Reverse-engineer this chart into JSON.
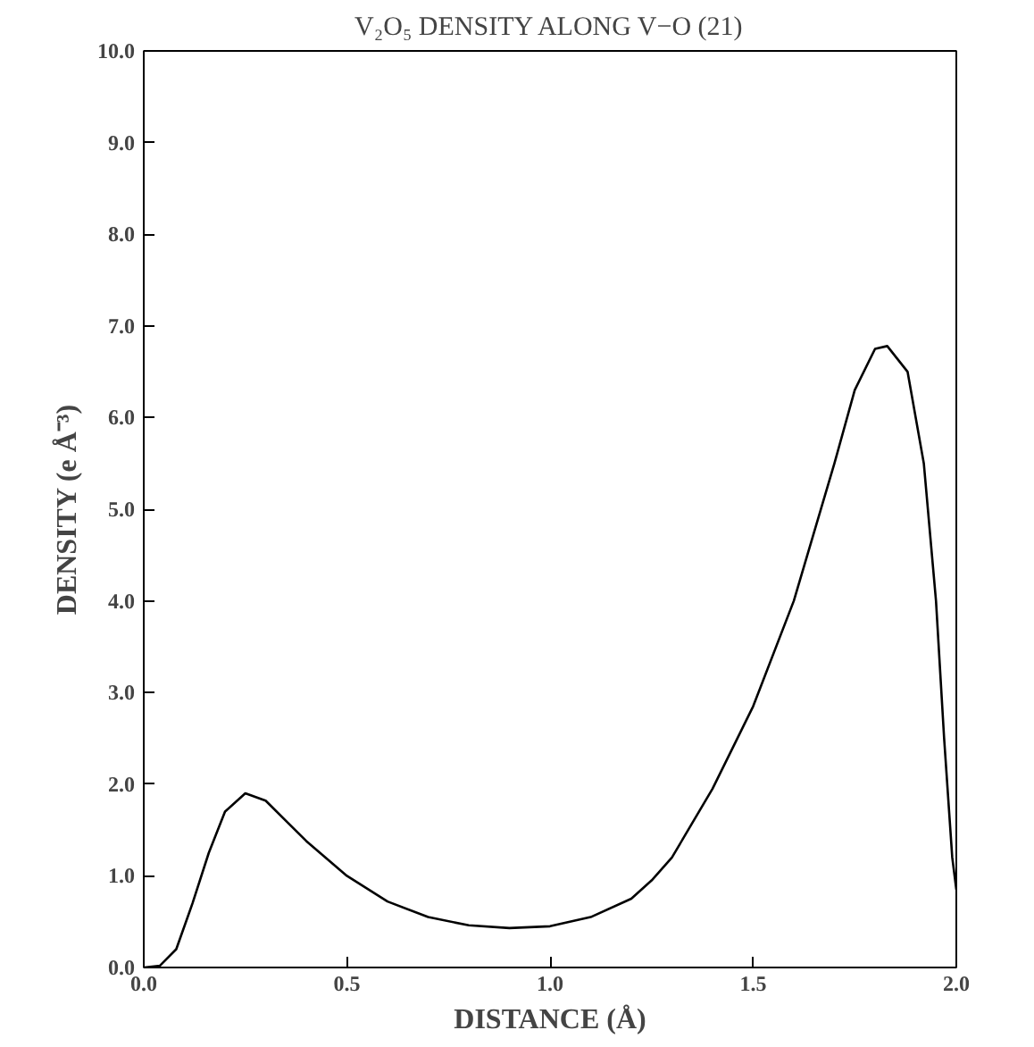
{
  "chart_data": {
    "type": "line",
    "title": "V₂O₅ DENSITY ALONG V−O (21)",
    "xlabel": "DISTANCE (Å)",
    "ylabel": "DENSITY (e Å⁻³)",
    "x": [
      0,
      0.04,
      0.08,
      0.12,
      0.16,
      0.2,
      0.25,
      0.3,
      0.35,
      0.4,
      0.5,
      0.6,
      0.7,
      0.8,
      0.9,
      1.0,
      1.1,
      1.2,
      1.25,
      1.3,
      1.4,
      1.5,
      1.6,
      1.7,
      1.75,
      1.8,
      1.83,
      1.88,
      1.92,
      1.95,
      1.97,
      1.99,
      2.0
    ],
    "series": [
      {
        "color": "#000000",
        "values": [
          0,
          0.02,
          0.2,
          0.7,
          1.25,
          1.7,
          1.9,
          1.82,
          1.6,
          1.38,
          1.0,
          0.72,
          0.55,
          0.46,
          0.43,
          0.45,
          0.55,
          0.75,
          0.95,
          1.2,
          1.95,
          2.85,
          4.0,
          5.5,
          6.3,
          6.75,
          6.78,
          6.5,
          5.5,
          4.0,
          2.5,
          1.2,
          0.85
        ]
      }
    ],
    "xlim": [
      0,
      2
    ],
    "ylim": [
      0,
      10
    ],
    "xticks": [
      {
        "value": 0,
        "label": "0.0"
      },
      {
        "value": 0.5,
        "label": "0.5"
      },
      {
        "value": 1,
        "label": "1.0"
      },
      {
        "value": 1.5,
        "label": "1.5"
      },
      {
        "value": 2,
        "label": "2.0"
      }
    ],
    "yticks": [
      {
        "value": 0,
        "label": "0.0"
      },
      {
        "value": 1,
        "label": "1.0"
      },
      {
        "value": 2,
        "label": "2.0"
      },
      {
        "value": 3,
        "label": "3.0"
      },
      {
        "value": 4,
        "label": "4.0"
      },
      {
        "value": 5,
        "label": "5.0"
      },
      {
        "value": 6,
        "label": "6.0"
      },
      {
        "value": 7,
        "label": "7.0"
      },
      {
        "value": 8,
        "label": "8.0"
      },
      {
        "value": 9,
        "label": "9.0"
      },
      {
        "value": 10,
        "label": "10.0"
      }
    ],
    "grid": false,
    "marker": "none",
    "line_style": "solid"
  }
}
